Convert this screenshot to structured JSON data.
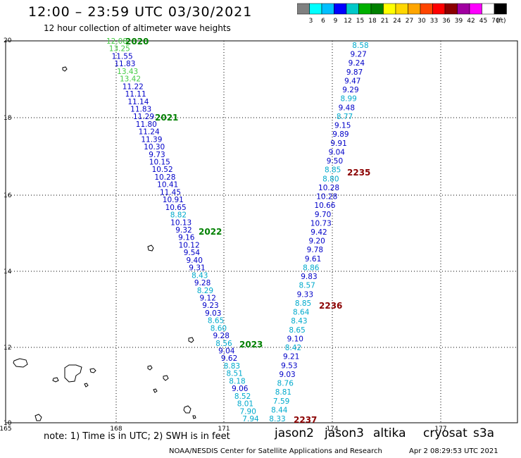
{
  "header": {
    "title": "12:00 – 23:59 UTC 03/30/2021",
    "subtitle": "12 hour collection of altimeter wave heights"
  },
  "legend": {
    "labels": [
      "3",
      "6",
      "9",
      "12",
      "15",
      "18",
      "21",
      "24",
      "27",
      "30",
      "33",
      "36",
      "39",
      "42",
      "45",
      "70"
    ],
    "unit": "(ft)",
    "colors": [
      "#808080",
      "#00ffff",
      "#00bfff",
      "#0000ff",
      "#00c8c8",
      "#00b000",
      "#008000",
      "#ffff00",
      "#ffd700",
      "#ffa500",
      "#ff4500",
      "#ff0000",
      "#8b0000",
      "#a000a0",
      "#ff00ff",
      "#ffffff",
      "#000000"
    ]
  },
  "axes": {
    "x_ticks": [
      "165",
      "168",
      "171",
      "174",
      "177"
    ],
    "y_ticks": [
      "20",
      "18",
      "16",
      "14",
      "12",
      "10"
    ]
  },
  "passes": [
    {
      "label": "2020",
      "color": "#008000"
    },
    {
      "label": "2021",
      "color": "#008000"
    },
    {
      "label": "2022",
      "color": "#008000"
    },
    {
      "label": "2023",
      "color": "#008000"
    },
    {
      "label": "2235",
      "color": "#8b0000"
    },
    {
      "label": "2236",
      "color": "#8b0000"
    },
    {
      "label": "2237",
      "color": "#8b0000"
    }
  ],
  "track_west": {
    "values": [
      "12.08",
      "13.25",
      "11.55",
      "11.83",
      "13.43",
      "13.42",
      "11.22",
      "11.11",
      "11.14",
      "11.83",
      "11.29",
      "11.80",
      "11.24",
      "11.39",
      "10.30",
      "9.73",
      "10.15",
      "10.52",
      "10.28",
      "10.41",
      "11.45",
      "10.91",
      "10.65",
      "8.82",
      "10.13",
      "9.32",
      "9.16",
      "10.12",
      "9.54",
      "9.40",
      "9.31",
      "8.43",
      "9.28",
      "8.29",
      "9.12",
      "9.23",
      "9.03",
      "8.65",
      "8.60",
      "9.28",
      "8.56",
      "9.04",
      "9.62",
      "8.83",
      "8.51",
      "8.18",
      "9.06",
      "8.52",
      "8.01",
      "7.90",
      "7.94"
    ],
    "colors": [
      "#44cc44",
      "#44cc44",
      "#0000c8",
      "#0000c8",
      "#44cc44",
      "#44cc44",
      "#0000c8",
      "#0000c8",
      "#0000c8",
      "#0000c8",
      "#0000c8",
      "#0000c8",
      "#0000c8",
      "#0000c8",
      "#0000c8",
      "#0000c8",
      "#0000c8",
      "#0000c8",
      "#0000c8",
      "#0000c8",
      "#0000c8",
      "#0000c8",
      "#0000c8",
      "#00aacc",
      "#0000c8",
      "#0000c8",
      "#0000c8",
      "#0000c8",
      "#0000c8",
      "#0000c8",
      "#0000c8",
      "#00aacc",
      "#0000c8",
      "#00aacc",
      "#0000c8",
      "#0000c8",
      "#0000c8",
      "#00aacc",
      "#00aacc",
      "#0000c8",
      "#00aacc",
      "#0000c8",
      "#0000c8",
      "#00aacc",
      "#00aacc",
      "#00aacc",
      "#0000c8",
      "#00aacc",
      "#00aacc",
      "#00aacc",
      "#00aacc"
    ]
  },
  "track_east": {
    "values": [
      "8.58",
      "9.27",
      "9.24",
      "9.87",
      "9.47",
      "9.29",
      "8.99",
      "9.48",
      "8.77",
      "9.15",
      "9.89",
      "9.91",
      "9.04",
      "9.50",
      "8.85",
      "8.80",
      "10.28",
      "10.28",
      "10.66",
      "9.70",
      "10.73",
      "9.42",
      "9.20",
      "9.78",
      "9.61",
      "8.86",
      "9.83",
      "8.57",
      "9.33",
      "8.85",
      "8.64",
      "8.43",
      "8.65",
      "9.10",
      "8.42",
      "9.21",
      "9.53",
      "9.03",
      "8.76",
      "8.81",
      "7.59",
      "8.44",
      "8.33"
    ],
    "colors": [
      "#00aacc",
      "#0000c8",
      "#0000c8",
      "#0000c8",
      "#0000c8",
      "#0000c8",
      "#00aacc",
      "#0000c8",
      "#00aacc",
      "#0000c8",
      "#0000c8",
      "#0000c8",
      "#0000c8",
      "#0000c8",
      "#00aacc",
      "#00aacc",
      "#0000c8",
      "#0000c8",
      "#0000c8",
      "#0000c8",
      "#0000c8",
      "#0000c8",
      "#0000c8",
      "#0000c8",
      "#0000c8",
      "#00aacc",
      "#0000c8",
      "#00aacc",
      "#0000c8",
      "#00aacc",
      "#00aacc",
      "#00aacc",
      "#00aacc",
      "#0000c8",
      "#00aacc",
      "#0000c8",
      "#0000c8",
      "#0000c8",
      "#00aacc",
      "#00aacc",
      "#00aacc",
      "#00aacc",
      "#00aacc"
    ]
  },
  "footer": {
    "note": "note: 1) Time is in UTC; 2) SWH is in feet",
    "satellites": [
      {
        "name": "jason2",
        "color": "#0000ff"
      },
      {
        "name": "jason3",
        "color": "#009900"
      },
      {
        "name": "altika",
        "color": "#ff9900"
      },
      {
        "name": "cryosat",
        "color": "#ff0000"
      },
      {
        "name": "s3a",
        "color": "#cc0000"
      }
    ],
    "credit": "NOAA/NESDIS Center for Satellite Applications and Research",
    "date": "Apr  2 08:29:53 UTC 2021"
  }
}
